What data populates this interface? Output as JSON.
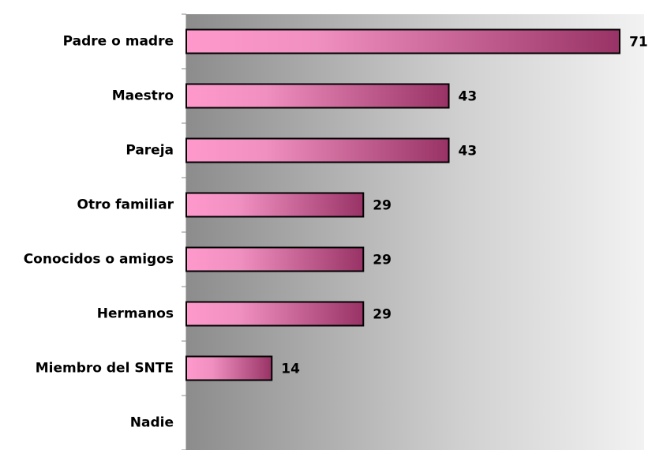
{
  "chart_data": {
    "type": "hbar",
    "categories": [
      "Padre o madre",
      "Maestro",
      "Pareja",
      "Otro familiar",
      "Conocidos o amigos",
      "Hermanos",
      "Miembro del SNTE",
      "Nadie"
    ],
    "values": [
      71,
      43,
      43,
      29,
      29,
      29,
      14,
      null
    ],
    "color": "#993366",
    "xlim": [
      0,
      75
    ]
  }
}
